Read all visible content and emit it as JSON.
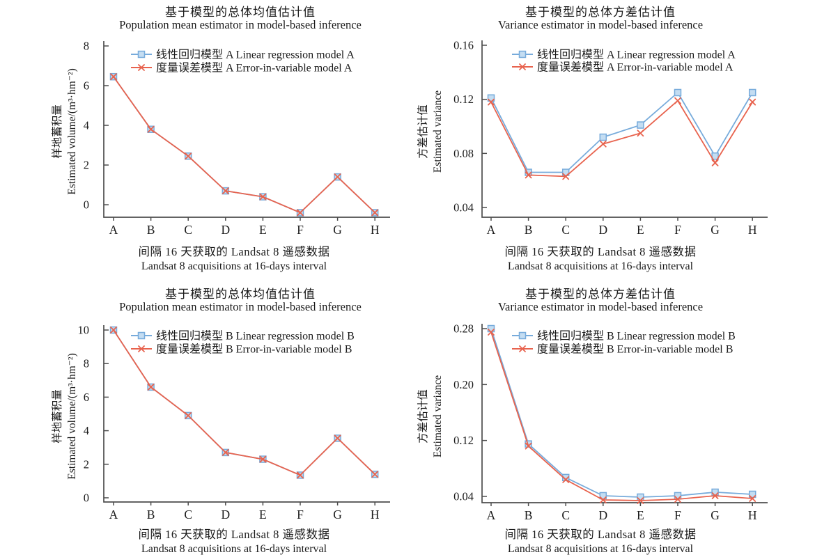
{
  "colors": {
    "blue": "#77ABDB",
    "blue_marker_fill": "#C4DDF2",
    "red": "#E8634E",
    "axis": "#4d4d4d",
    "text": "#1a1a1a"
  },
  "chart_data": [
    {
      "type": "line",
      "title_zh": "基于模型的总体均值估计值",
      "title_en": "Population mean estimator in model-based inference",
      "ylabel_zh": "样地蓄积量",
      "ylabel_en": "Estimated volume/(m³·hm⁻²)",
      "xlabel_zh": "间隔 16 天获取的 Landsat 8 遥感数据",
      "xlabel_en": "Landsat 8 acquisitions at 16-days interval",
      "categories": [
        "A",
        "B",
        "C",
        "D",
        "E",
        "F",
        "G",
        "H"
      ],
      "yticks": [
        0,
        2,
        4,
        6,
        8
      ],
      "ytick_labels": [
        "0",
        "2",
        "4",
        "6",
        "8"
      ],
      "ylim": [
        -0.63,
        8
      ],
      "legend_position": "inside-top-left",
      "series": [
        {
          "name": "线性回归模型 A Linear regression model A",
          "color": "#77ABDB",
          "marker": "open-square",
          "values": [
            6.45,
            3.8,
            2.45,
            0.7,
            0.4,
            -0.4,
            1.4,
            -0.4
          ]
        },
        {
          "name": "度量误差模型 A Error-in-variable model A",
          "color": "#E8634E",
          "marker": "x-cross",
          "values": [
            6.45,
            3.8,
            2.45,
            0.7,
            0.4,
            -0.4,
            1.4,
            -0.4
          ]
        }
      ]
    },
    {
      "type": "line",
      "title_zh": "基于模型的总体方差估计值",
      "title_en": "Variance estimator in model-based inference",
      "ylabel_zh": "方差估计值",
      "ylabel_en": "Estimated variance",
      "xlabel_zh": "间隔 16 天获取的 Landsat 8 遥感数据",
      "xlabel_en": "Landsat 8 acquisitions at 16-days interval",
      "categories": [
        "A",
        "B",
        "C",
        "D",
        "E",
        "F",
        "G",
        "H"
      ],
      "yticks": [
        0.04,
        0.08,
        0.12,
        0.16
      ],
      "ytick_labels": [
        "0.04",
        "0.08",
        "0.12",
        "0.16"
      ],
      "ylim": [
        0.0328,
        0.16
      ],
      "legend_position": "inside-top-left",
      "series": [
        {
          "name": "线性回归模型 A Linear regression model A",
          "color": "#77ABDB",
          "marker": "open-square",
          "values": [
            0.121,
            0.066,
            0.066,
            0.092,
            0.101,
            0.125,
            0.078,
            0.125
          ]
        },
        {
          "name": "度量误差模型 A Error-in-variable model A",
          "color": "#E8634E",
          "marker": "x-cross",
          "values": [
            0.118,
            0.064,
            0.063,
            0.087,
            0.095,
            0.119,
            0.073,
            0.118
          ]
        }
      ]
    },
    {
      "type": "line",
      "title_zh": "基于模型的总体均值估计值",
      "title_en": "Population mean estimator in model-based inference",
      "ylabel_zh": "样地蓄积量",
      "ylabel_en": "Estimated volume/(m³·hm⁻²)",
      "xlabel_zh": "间隔 16 天获取的 Landsat 8 遥感数据",
      "xlabel_en": "Landsat 8 acquisitions at 16-days interval",
      "categories": [
        "A",
        "B",
        "C",
        "D",
        "E",
        "F",
        "G",
        "H"
      ],
      "yticks": [
        0,
        2,
        4,
        6,
        8,
        10
      ],
      "ytick_labels": [
        "0",
        "2",
        "4",
        "6",
        "8",
        "10"
      ],
      "ylim": [
        -0.25,
        10
      ],
      "legend_position": "inside-top-left",
      "series": [
        {
          "name": "线性回归模型 B Linear regression model B",
          "color": "#77ABDB",
          "marker": "open-square",
          "values": [
            10.0,
            6.6,
            4.9,
            2.7,
            2.3,
            1.35,
            3.55,
            1.4
          ]
        },
        {
          "name": "度量误差模型 B Error-in-variable model B",
          "color": "#E8634E",
          "marker": "x-cross",
          "values": [
            10.0,
            6.6,
            4.9,
            2.7,
            2.3,
            1.35,
            3.55,
            1.4
          ]
        }
      ]
    },
    {
      "type": "line",
      "title_zh": "基于模型的总体方差估计值",
      "title_en": "Variance estimator in model-based inference",
      "ylabel_zh": "方差估计值",
      "ylabel_en": "Estimated variance",
      "xlabel_zh": "间隔 16 天获取的 Landsat 8 遥感数据",
      "xlabel_en": "Landsat 8 acquisitions at 16-days interval",
      "categories": [
        "A",
        "B",
        "C",
        "D",
        "E",
        "F",
        "G",
        "H"
      ],
      "yticks": [
        0.04,
        0.12,
        0.2,
        0.28
      ],
      "ytick_labels": [
        "0.04",
        "0.12",
        "0.20",
        "0.28"
      ],
      "ylim": [
        0.031,
        0.28
      ],
      "legend_position": "inside-top-left",
      "series": [
        {
          "name": "线性回归模型 B Linear regression model B",
          "color": "#77ABDB",
          "marker": "open-square",
          "values": [
            0.28,
            0.115,
            0.067,
            0.041,
            0.039,
            0.041,
            0.046,
            0.043
          ]
        },
        {
          "name": "度量误差模型 B Error-in-variable model B",
          "color": "#E8634E",
          "marker": "x-cross",
          "values": [
            0.275,
            0.112,
            0.064,
            0.035,
            0.034,
            0.036,
            0.041,
            0.037
          ]
        }
      ]
    }
  ]
}
